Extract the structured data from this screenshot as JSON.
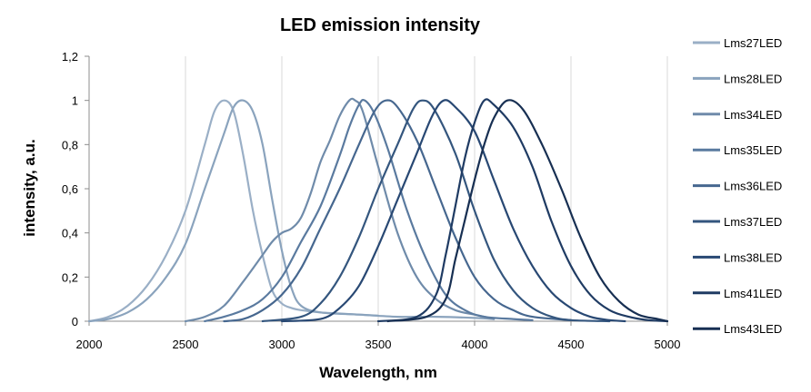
{
  "chart_data": {
    "type": "line",
    "title": "LED emission intensity",
    "xlabel": "Wavelength, nm",
    "ylabel": "intensity, a.u.",
    "xlim": [
      2000,
      5000
    ],
    "ylim": [
      0,
      1.2
    ],
    "x_ticks": [
      2000,
      2500,
      3000,
      3500,
      4000,
      4500,
      5000
    ],
    "y_ticks": [
      0,
      0.2,
      0.4,
      0.6,
      0.8,
      1.0,
      1.2
    ],
    "y_tick_labels": [
      "0",
      "0,2",
      "0,4",
      "0,6",
      "0,8",
      "1",
      "1,2"
    ],
    "grid": "vertical",
    "legend": "right",
    "series": [
      {
        "name": "Lms27LED",
        "color": "#9aafc6",
        "points": [
          [
            2000,
            0
          ],
          [
            2100,
            0.02
          ],
          [
            2200,
            0.07
          ],
          [
            2300,
            0.16
          ],
          [
            2400,
            0.3
          ],
          [
            2500,
            0.5
          ],
          [
            2600,
            0.8
          ],
          [
            2650,
            0.95
          ],
          [
            2700,
            1.0
          ],
          [
            2750,
            0.95
          ],
          [
            2800,
            0.75
          ],
          [
            2850,
            0.5
          ],
          [
            2900,
            0.3
          ],
          [
            2950,
            0.14
          ],
          [
            3000,
            0.08
          ],
          [
            3050,
            0.06
          ],
          [
            3100,
            0.05
          ],
          [
            3200,
            0.04
          ],
          [
            3300,
            0.035
          ],
          [
            3400,
            0.03
          ],
          [
            3500,
            0.025
          ]
        ]
      },
      {
        "name": "Lms28LED",
        "color": "#8aa3bd",
        "points": [
          [
            2000,
            0
          ],
          [
            2100,
            0.01
          ],
          [
            2200,
            0.04
          ],
          [
            2300,
            0.1
          ],
          [
            2400,
            0.2
          ],
          [
            2500,
            0.35
          ],
          [
            2600,
            0.6
          ],
          [
            2700,
            0.85
          ],
          [
            2750,
            0.97
          ],
          [
            2800,
            1.0
          ],
          [
            2850,
            0.95
          ],
          [
            2900,
            0.8
          ],
          [
            2950,
            0.55
          ],
          [
            3000,
            0.32
          ],
          [
            3050,
            0.15
          ],
          [
            3100,
            0.07
          ],
          [
            3200,
            0.04
          ],
          [
            3400,
            0.03
          ],
          [
            3600,
            0.02
          ],
          [
            3800,
            0.02
          ],
          [
            4000,
            0.015
          ],
          [
            4100,
            0.01
          ]
        ]
      },
      {
        "name": "Lms34LED",
        "color": "#6f8baa",
        "points": [
          [
            2500,
            0
          ],
          [
            2600,
            0.02
          ],
          [
            2700,
            0.07
          ],
          [
            2800,
            0.18
          ],
          [
            2900,
            0.3
          ],
          [
            2950,
            0.36
          ],
          [
            3000,
            0.4
          ],
          [
            3050,
            0.42
          ],
          [
            3100,
            0.47
          ],
          [
            3150,
            0.58
          ],
          [
            3200,
            0.72
          ],
          [
            3250,
            0.82
          ],
          [
            3300,
            0.93
          ],
          [
            3350,
            1.0
          ],
          [
            3380,
            1.0
          ],
          [
            3420,
            0.95
          ],
          [
            3500,
            0.7
          ],
          [
            3600,
            0.4
          ],
          [
            3700,
            0.2
          ],
          [
            3800,
            0.1
          ],
          [
            3900,
            0.05
          ],
          [
            4000,
            0.03
          ],
          [
            4100,
            0.01
          ]
        ]
      },
      {
        "name": "Lms35LED",
        "color": "#5a7a9f",
        "points": [
          [
            2600,
            0
          ],
          [
            2700,
            0.02
          ],
          [
            2800,
            0.05
          ],
          [
            2900,
            0.1
          ],
          [
            3000,
            0.2
          ],
          [
            3100,
            0.36
          ],
          [
            3200,
            0.52
          ],
          [
            3300,
            0.75
          ],
          [
            3350,
            0.88
          ],
          [
            3400,
            0.98
          ],
          [
            3430,
            1.0
          ],
          [
            3480,
            0.94
          ],
          [
            3550,
            0.78
          ],
          [
            3650,
            0.5
          ],
          [
            3750,
            0.28
          ],
          [
            3850,
            0.12
          ],
          [
            3950,
            0.05
          ],
          [
            4050,
            0.02
          ],
          [
            4200,
            0.01
          ],
          [
            4300,
            0.005
          ]
        ]
      },
      {
        "name": "Lms36LED",
        "color": "#46678f",
        "points": [
          [
            2700,
            0
          ],
          [
            2800,
            0.01
          ],
          [
            2900,
            0.05
          ],
          [
            3000,
            0.12
          ],
          [
            3100,
            0.24
          ],
          [
            3200,
            0.42
          ],
          [
            3300,
            0.6
          ],
          [
            3400,
            0.8
          ],
          [
            3480,
            0.95
          ],
          [
            3540,
            1.0
          ],
          [
            3600,
            0.97
          ],
          [
            3700,
            0.82
          ],
          [
            3800,
            0.6
          ],
          [
            3900,
            0.38
          ],
          [
            4000,
            0.2
          ],
          [
            4100,
            0.1
          ],
          [
            4200,
            0.05
          ],
          [
            4300,
            0.02
          ],
          [
            4500,
            0.005
          ]
        ]
      },
      {
        "name": "Lms37LED",
        "color": "#34567e",
        "points": [
          [
            2900,
            0
          ],
          [
            3100,
            0.02
          ],
          [
            3200,
            0.08
          ],
          [
            3300,
            0.2
          ],
          [
            3400,
            0.38
          ],
          [
            3500,
            0.6
          ],
          [
            3600,
            0.8
          ],
          [
            3680,
            0.96
          ],
          [
            3730,
            1.0
          ],
          [
            3790,
            0.96
          ],
          [
            3900,
            0.76
          ],
          [
            4000,
            0.5
          ],
          [
            4100,
            0.28
          ],
          [
            4200,
            0.14
          ],
          [
            4300,
            0.06
          ],
          [
            4400,
            0.02
          ],
          [
            4500,
            0.005
          ],
          [
            4700,
            0
          ]
        ]
      },
      {
        "name": "Lms38LED",
        "color": "#284873",
        "points": [
          [
            3000,
            0
          ],
          [
            3200,
            0.01
          ],
          [
            3300,
            0.06
          ],
          [
            3400,
            0.16
          ],
          [
            3500,
            0.34
          ],
          [
            3600,
            0.55
          ],
          [
            3700,
            0.76
          ],
          [
            3780,
            0.93
          ],
          [
            3840,
            1.0
          ],
          [
            3900,
            0.97
          ],
          [
            4000,
            0.86
          ],
          [
            4100,
            0.64
          ],
          [
            4200,
            0.42
          ],
          [
            4300,
            0.25
          ],
          [
            4400,
            0.13
          ],
          [
            4500,
            0.06
          ],
          [
            4600,
            0.02
          ],
          [
            4700,
            0.005
          ],
          [
            4780,
            0
          ]
        ]
      },
      {
        "name": "Lms41LED",
        "color": "#1f3b63",
        "points": [
          [
            3500,
            0
          ],
          [
            3700,
            0.02
          ],
          [
            3800,
            0.12
          ],
          [
            3850,
            0.3
          ],
          [
            3900,
            0.52
          ],
          [
            3950,
            0.74
          ],
          [
            4000,
            0.9
          ],
          [
            4050,
            1.0
          ],
          [
            4100,
            0.98
          ],
          [
            4200,
            0.88
          ],
          [
            4300,
            0.7
          ],
          [
            4400,
            0.45
          ],
          [
            4500,
            0.25
          ],
          [
            4600,
            0.12
          ],
          [
            4700,
            0.05
          ],
          [
            4800,
            0.02
          ],
          [
            4900,
            0.005
          ],
          [
            5000,
            0
          ]
        ]
      },
      {
        "name": "Lms43LED",
        "color": "#172f52",
        "points": [
          [
            3550,
            0
          ],
          [
            3750,
            0.02
          ],
          [
            3850,
            0.1
          ],
          [
            3900,
            0.28
          ],
          [
            3950,
            0.46
          ],
          [
            4000,
            0.64
          ],
          [
            4050,
            0.8
          ],
          [
            4100,
            0.92
          ],
          [
            4170,
            1.0
          ],
          [
            4250,
            0.96
          ],
          [
            4350,
            0.8
          ],
          [
            4450,
            0.6
          ],
          [
            4550,
            0.38
          ],
          [
            4650,
            0.2
          ],
          [
            4750,
            0.09
          ],
          [
            4850,
            0.03
          ],
          [
            4950,
            0.01
          ],
          [
            5000,
            0
          ]
        ]
      }
    ]
  }
}
